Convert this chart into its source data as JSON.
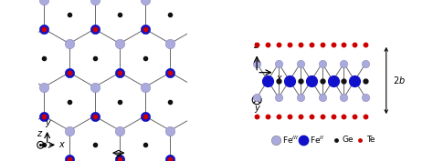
{
  "colors": {
    "FeIII": "#AAAADD",
    "FeII": "#1111CC",
    "Ge": "#111111",
    "Te": "#CC0000",
    "bond": "#666666",
    "bg": "#FFFFFF"
  },
  "legend_labels": [
    "Fe$^{III}$",
    "Fe$^{II}$",
    "Ge",
    "Te"
  ],
  "r_hex": 1.0,
  "left_xlim": [
    -0.2,
    4.9
  ],
  "left_ylim": [
    -0.55,
    5.0
  ]
}
